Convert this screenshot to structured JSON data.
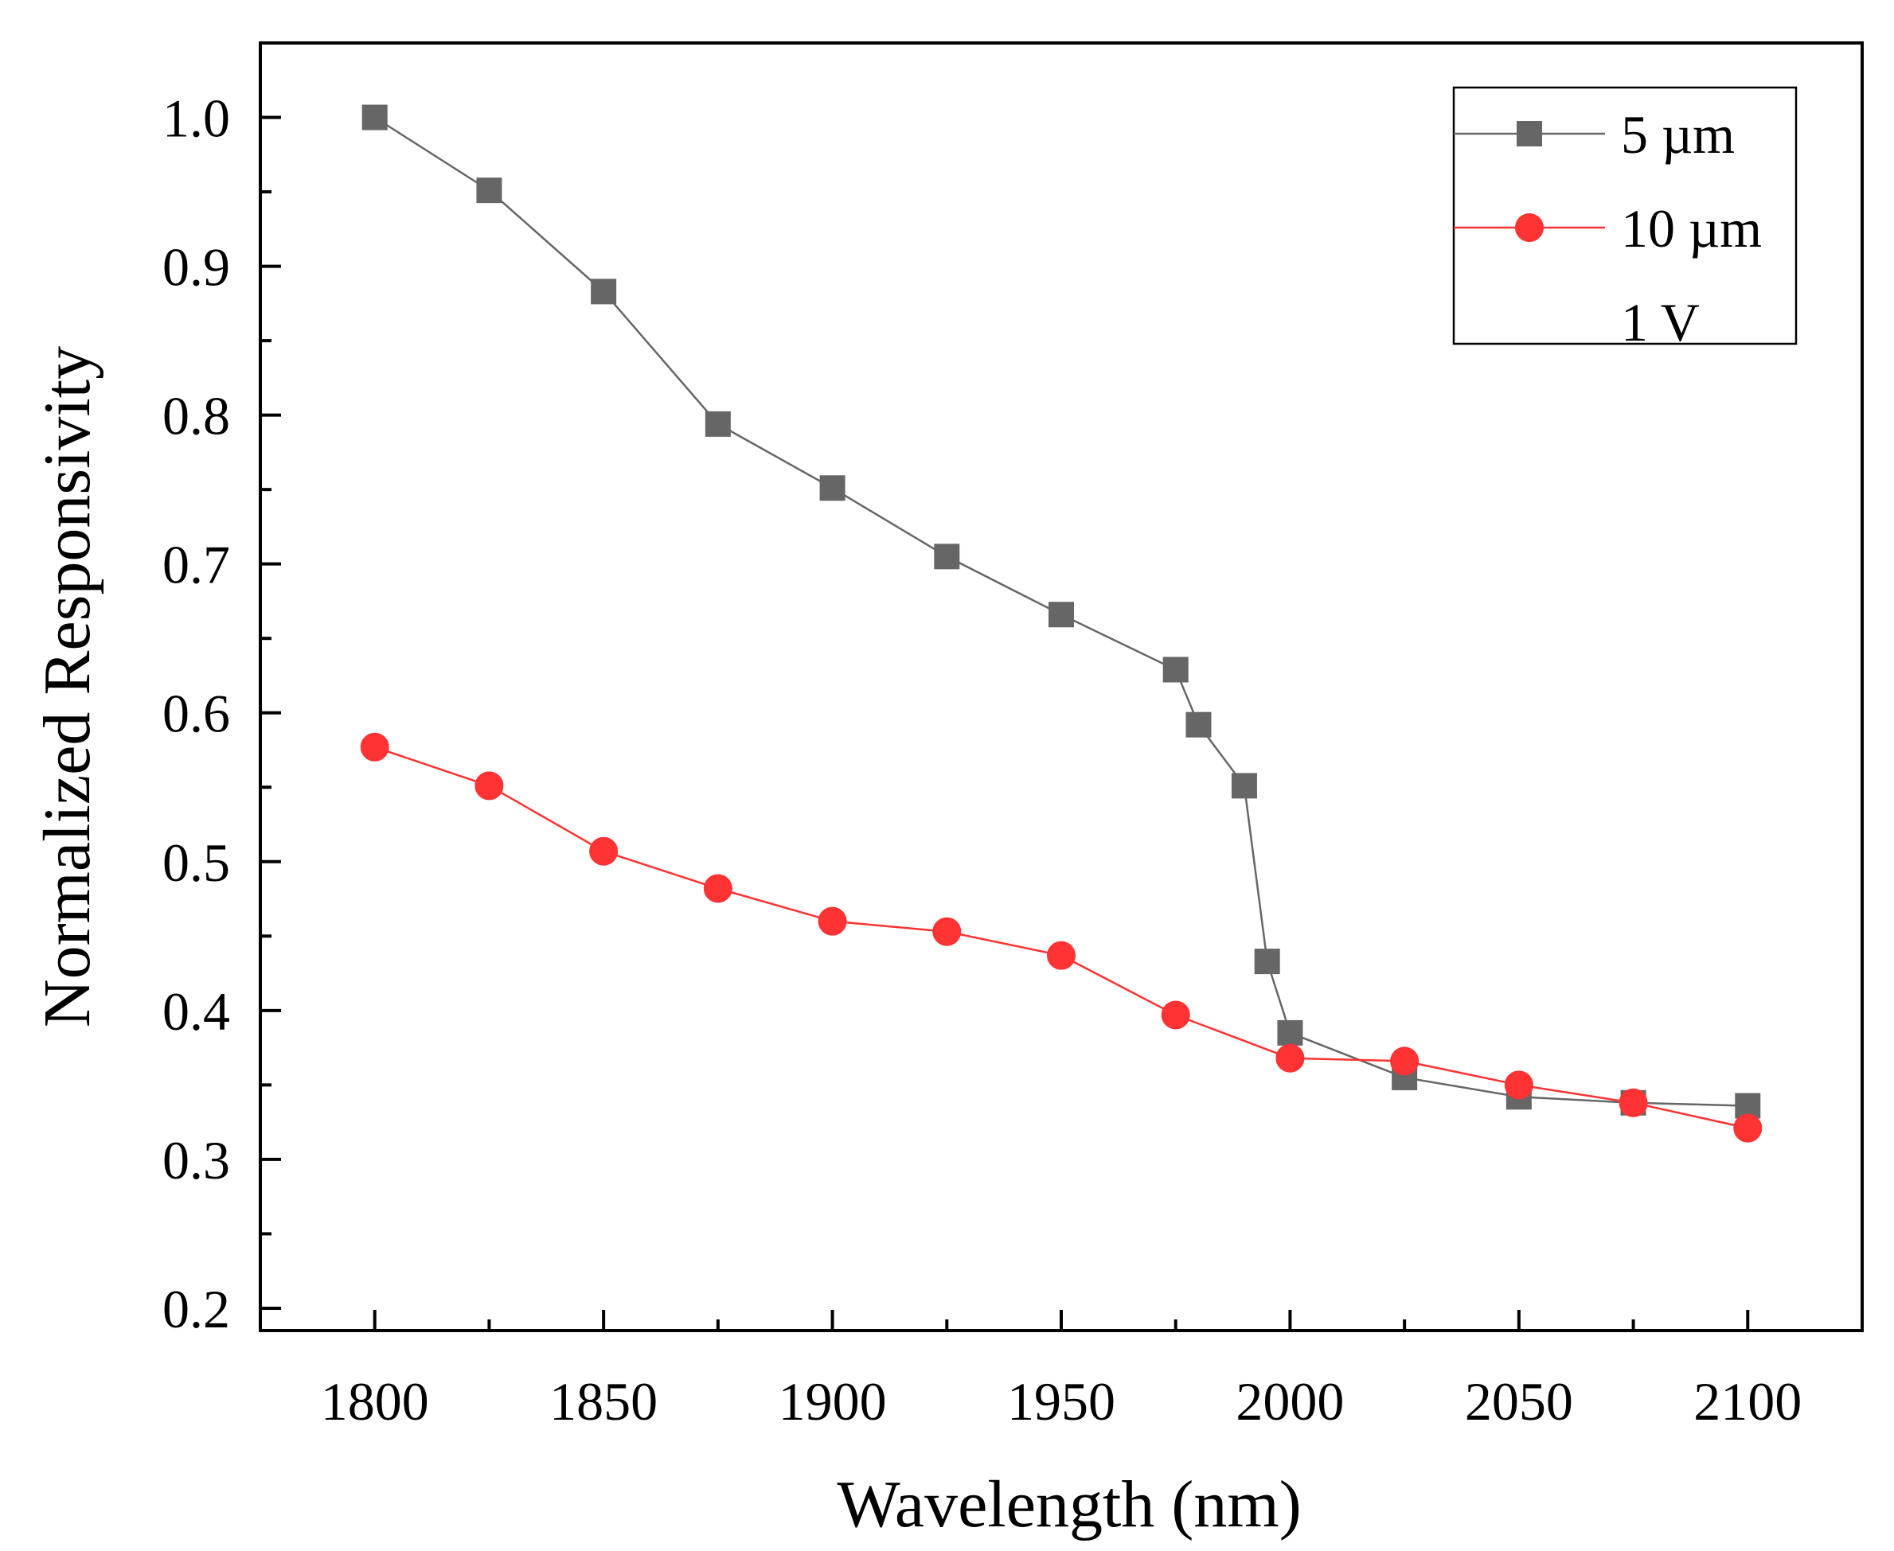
{
  "chart_data": {
    "type": "line",
    "title": "",
    "xlabel": "Wavelength (nm)",
    "ylabel": "Normalized Responsivity",
    "xlim": [
      1775,
      2125
    ],
    "ylim": [
      0.185,
      1.05
    ],
    "xticks": [
      1800,
      1850,
      1900,
      1950,
      2000,
      2050,
      2100
    ],
    "xtick_labels": [
      "1800",
      "1850",
      "1900",
      "1950",
      "2000",
      "2050",
      "2100"
    ],
    "yticks": [
      0.2,
      0.3,
      0.4,
      0.5,
      0.6,
      0.7,
      0.8,
      0.9,
      1.0
    ],
    "ytick_labels": [
      "0.2",
      "0.3",
      "0.4",
      "0.5",
      "0.6",
      "0.7",
      "0.8",
      "0.9",
      "1.0"
    ],
    "grid": false,
    "legend": {
      "placement": "top-right",
      "note": "1 V"
    },
    "series": [
      {
        "name": "5 µm",
        "color": "#666666",
        "marker": "square",
        "x": [
          1800,
          1825,
          1850,
          1875,
          1900,
          1925,
          1950,
          1975,
          1980,
          1990,
          1995,
          2000,
          2025,
          2050,
          2075,
          2100
        ],
        "y": [
          1.0,
          0.951,
          0.883,
          0.794,
          0.751,
          0.705,
          0.666,
          0.629,
          0.592,
          0.551,
          0.433,
          0.385,
          0.355,
          0.342,
          0.338,
          0.336
        ]
      },
      {
        "name": "10 µm",
        "color": "#ff3333",
        "marker": "circle",
        "x": [
          1800,
          1825,
          1850,
          1875,
          1900,
          1925,
          1950,
          1975,
          2000,
          2025,
          2050,
          2075,
          2100
        ],
        "y": [
          0.577,
          0.551,
          0.507,
          0.482,
          0.46,
          0.453,
          0.437,
          0.397,
          0.368,
          0.366,
          0.35,
          0.338,
          0.321
        ]
      }
    ]
  }
}
